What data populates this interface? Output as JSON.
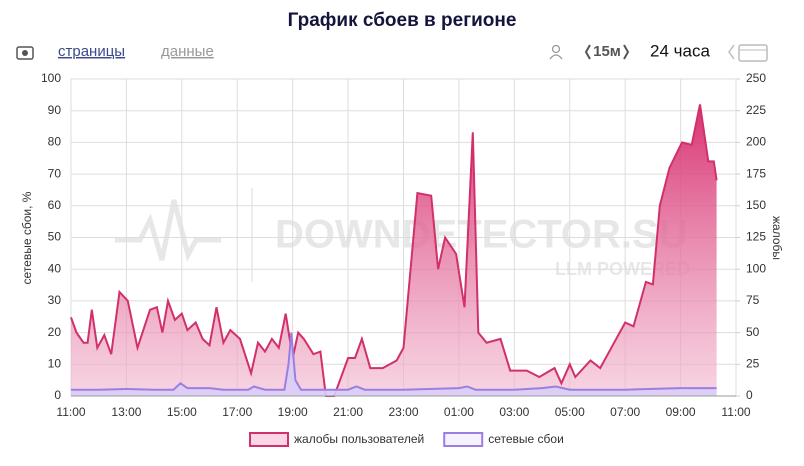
{
  "ui": {
    "tabs": [
      "страницы",
      "данные"
    ],
    "interval": "15м",
    "range": "24 часа",
    "watermark": [
      "DOWNDETECTOR.SU",
      "LLM POWERED"
    ]
  },
  "chart_data": {
    "type": "area",
    "title": "График сбоев в регионе",
    "ylabel": "сетевые сбои, %",
    "y2label": "жалобы",
    "xlim": [
      0,
      24
    ],
    "xticks": [
      {
        "value": 0,
        "label": "11:00"
      },
      {
        "value": 2,
        "label": "13:00"
      },
      {
        "value": 4,
        "label": "15:00"
      },
      {
        "value": 6,
        "label": "17:00"
      },
      {
        "value": 8,
        "label": "19:00"
      },
      {
        "value": 10,
        "label": "21:00"
      },
      {
        "value": 12,
        "label": "23:00"
      },
      {
        "value": 14,
        "label": "01:00"
      },
      {
        "value": 16,
        "label": "03:00"
      },
      {
        "value": 18,
        "label": "05:00"
      },
      {
        "value": 20,
        "label": "07:00"
      },
      {
        "value": 22,
        "label": "09:00"
      },
      {
        "value": 24,
        "label": "11:00"
      }
    ],
    "ylim": [
      0,
      100
    ],
    "yticks": [
      0,
      10,
      20,
      30,
      40,
      50,
      60,
      70,
      80,
      90,
      100
    ],
    "y2lim": [
      0,
      250
    ],
    "y2ticks": [
      0,
      25,
      50,
      75,
      100,
      125,
      150,
      175,
      200,
      225,
      250
    ],
    "grid": true,
    "legend": "bottom",
    "series": [
      {
        "name": "жалобы пользователей",
        "color": "#d1306a",
        "fill": "#e8579a",
        "axis": "y2",
        "x": [
          0,
          0.2,
          0.45,
          0.6,
          0.75,
          0.95,
          1.2,
          1.45,
          1.75,
          2.05,
          2.4,
          2.85,
          3.1,
          3.3,
          3.5,
          3.75,
          4.0,
          4.2,
          4.5,
          4.75,
          5.0,
          5.25,
          5.5,
          5.75,
          6.1,
          6.5,
          6.75,
          7.0,
          7.25,
          7.5,
          7.75,
          8.0,
          8.2,
          8.4,
          8.75,
          9.0,
          9.2,
          9.5,
          10.0,
          10.25,
          10.5,
          10.8,
          11.25,
          11.75,
          12.0,
          12.5,
          13.0,
          13.25,
          13.5,
          13.9,
          14.2,
          14.5,
          14.7,
          15.0,
          15.5,
          15.85,
          16.45,
          16.9,
          17.45,
          17.7,
          18.0,
          18.2,
          18.75,
          19.1,
          19.5,
          20.0,
          20.3,
          20.75,
          21.0,
          21.25,
          21.6,
          22.05,
          22.4,
          22.7,
          23.0,
          23.2,
          23.3
        ],
        "values": [
          62,
          50,
          42,
          42,
          68,
          38,
          48,
          33,
          82,
          75,
          38,
          68,
          70,
          50,
          75,
          60,
          65,
          52,
          58,
          45,
          40,
          70,
          42,
          52,
          45,
          18,
          42,
          35,
          45,
          38,
          65,
          30,
          50,
          45,
          33,
          35,
          0,
          0,
          30,
          30,
          45,
          22,
          22,
          28,
          38,
          160,
          158,
          100,
          125,
          112,
          70,
          208,
          50,
          42,
          45,
          20,
          20,
          15,
          22,
          10,
          25,
          15,
          28,
          22,
          38,
          58,
          55,
          90,
          88,
          150,
          180,
          200,
          198,
          230,
          185,
          185,
          170
        ]
      },
      {
        "name": "сетевые сбои",
        "color": "#9b7fe0",
        "fill": "#d9cdf7",
        "axis": "y",
        "x": [
          0,
          1,
          2,
          3,
          3.7,
          3.95,
          4.2,
          5,
          5.5,
          6.4,
          6.6,
          7,
          7.7,
          7.85,
          7.95,
          8.1,
          8.3,
          9,
          10,
          10.3,
          10.6,
          12,
          14,
          14.3,
          14.6,
          16,
          17,
          17.5,
          18,
          20,
          22,
          23,
          23.3
        ],
        "values": [
          2,
          2,
          2.2,
          2,
          2,
          4,
          2.5,
          2.5,
          2,
          2,
          3,
          2,
          2,
          10,
          20,
          5,
          2,
          2,
          2,
          3,
          2,
          2,
          2.5,
          3,
          2,
          2,
          2.5,
          3,
          2,
          2,
          2.5,
          2.5,
          2.5
        ]
      }
    ]
  }
}
